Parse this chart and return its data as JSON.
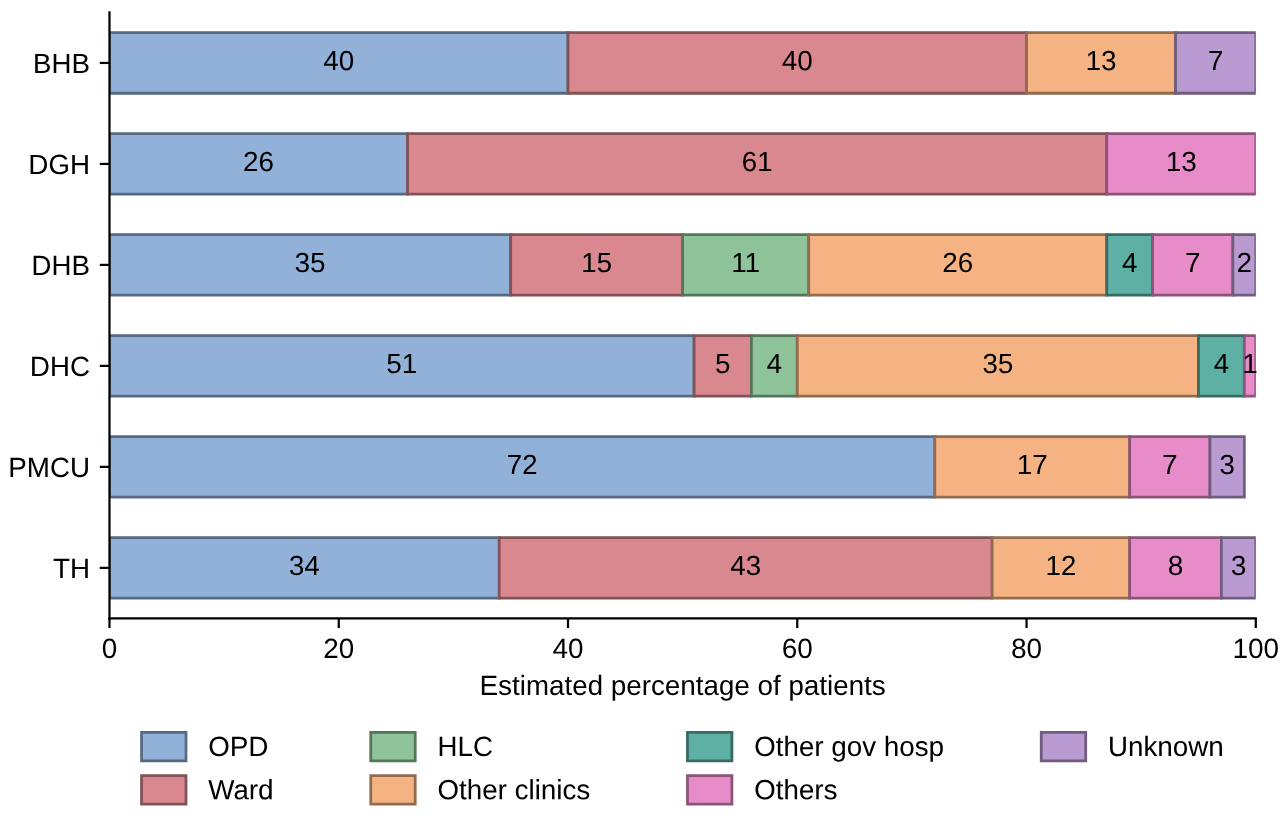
{
  "chart_data": {
    "type": "bar",
    "orientation": "horizontal",
    "stacked": true,
    "data_labels": true,
    "xlabel": "Estimated percentage of patients",
    "categories": [
      "BHB",
      "DGH",
      "DHB",
      "DHC",
      "PMCU",
      "TH"
    ],
    "xlim": [
      0,
      100
    ],
    "xticks": [
      0,
      20,
      40,
      60,
      80,
      100
    ],
    "grid": false,
    "legend": "bottom",
    "series": [
      {
        "name": "OPD",
        "color": "#92b1d9",
        "values": [
          40,
          26,
          35,
          51,
          72,
          34
        ]
      },
      {
        "name": "Ward",
        "color": "#d98890",
        "values": [
          40,
          61,
          15,
          5,
          null,
          43
        ]
      },
      {
        "name": "HLC",
        "color": "#8fc49a",
        "values": [
          null,
          null,
          11,
          4,
          null,
          null
        ]
      },
      {
        "name": "Other clinics",
        "color": "#f5b282",
        "values": [
          13,
          null,
          26,
          35,
          17,
          12
        ]
      },
      {
        "name": "Other gov hosp",
        "color": "#5fb0a4",
        "values": [
          null,
          null,
          4,
          4,
          null,
          null
        ]
      },
      {
        "name": "Others",
        "color": "#e88cc9",
        "values": [
          null,
          13,
          7,
          1,
          7,
          8
        ]
      },
      {
        "name": "Unknown",
        "color": "#b99bd1",
        "values": [
          7,
          null,
          2,
          null,
          3,
          3
        ]
      }
    ]
  }
}
